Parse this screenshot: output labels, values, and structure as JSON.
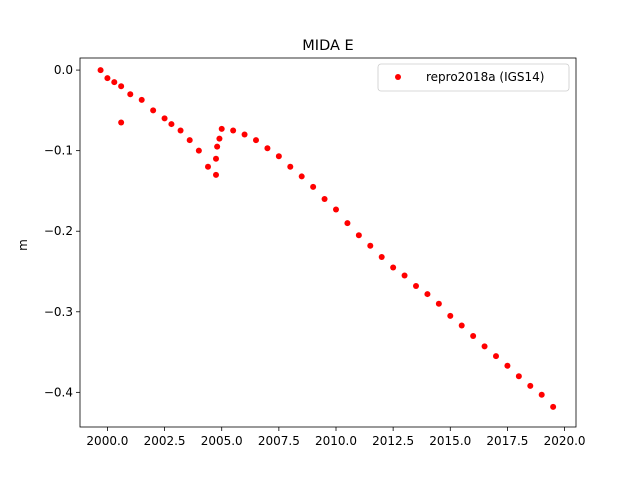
{
  "chart_data": {
    "type": "scatter",
    "title": "MIDA E",
    "xlabel": "",
    "ylabel": "m",
    "xlim": [
      1998.8,
      2020.5
    ],
    "ylim": [
      -0.443,
      0.015
    ],
    "xticks": [
      2000.0,
      2002.5,
      2005.0,
      2007.5,
      2010.0,
      2012.5,
      2015.0,
      2017.5,
      2020.0
    ],
    "xtick_labels": [
      "2000.0",
      "2002.5",
      "2005.0",
      "2007.5",
      "2010.0",
      "2012.5",
      "2015.0",
      "2017.5",
      "2020.0"
    ],
    "yticks": [
      0.0,
      -0.1,
      -0.2,
      -0.3,
      -0.4
    ],
    "ytick_labels": [
      "0.0",
      "−0.1",
      "−0.2",
      "−0.3",
      "−0.4"
    ],
    "grid": false,
    "legend_position": "top-right",
    "series": [
      {
        "name": "repro2018a (IGS14)",
        "color": "#ff0000",
        "marker": "circle",
        "x": [
          1999.7,
          2000.0,
          2000.3,
          2000.6,
          2001.0,
          2001.5,
          2002.0,
          2002.5,
          2002.8,
          2003.2,
          2003.6,
          2004.0,
          2004.4,
          2004.75,
          2004.9,
          2005.0,
          2005.5,
          2006.0,
          2006.5,
          2007.0,
          2007.5,
          2008.0,
          2008.5,
          2009.0,
          2009.5,
          2010.0,
          2010.5,
          2011.0,
          2011.5,
          2012.0,
          2012.5,
          2013.0,
          2013.5,
          2014.0,
          2014.5,
          2015.0,
          2015.5,
          2016.0,
          2016.5,
          2017.0,
          2017.5,
          2018.0,
          2018.5,
          2019.0,
          2019.5,
          2000.6,
          2004.75,
          2004.8
        ],
        "y": [
          0.0,
          -0.01,
          -0.015,
          -0.02,
          -0.03,
          -0.037,
          -0.05,
          -0.06,
          -0.067,
          -0.075,
          -0.087,
          -0.1,
          -0.12,
          -0.13,
          -0.085,
          -0.073,
          -0.075,
          -0.08,
          -0.087,
          -0.097,
          -0.107,
          -0.12,
          -0.132,
          -0.145,
          -0.16,
          -0.173,
          -0.19,
          -0.205,
          -0.218,
          -0.232,
          -0.245,
          -0.255,
          -0.268,
          -0.278,
          -0.29,
          -0.305,
          -0.317,
          -0.33,
          -0.343,
          -0.355,
          -0.367,
          -0.38,
          -0.392,
          -0.403,
          -0.418,
          -0.065,
          -0.11,
          -0.095
        ]
      }
    ]
  }
}
